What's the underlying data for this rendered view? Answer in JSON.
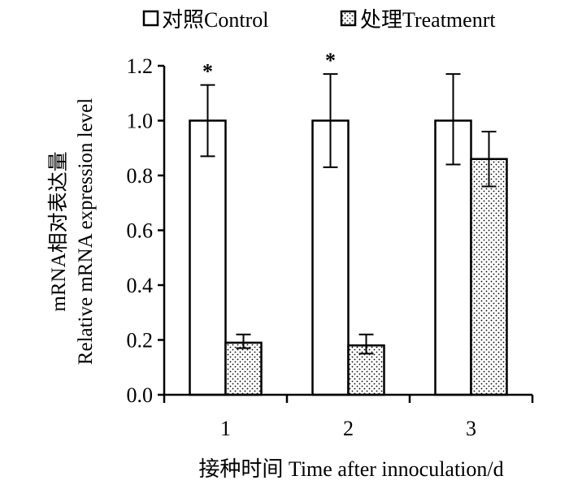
{
  "chart_data": {
    "type": "bar",
    "categories": [
      "1",
      "2",
      "3"
    ],
    "series": [
      {
        "name": "对照Control",
        "values": [
          1.0,
          1.0,
          1.0
        ],
        "err_low": [
          0.87,
          0.83,
          0.84
        ],
        "err_high": [
          1.13,
          1.17,
          1.17
        ],
        "color": "#ffffff",
        "pattern": "none"
      },
      {
        "name": "处理Treatmenrt",
        "values": [
          0.19,
          0.18,
          0.86
        ],
        "err_low": [
          0.17,
          0.15,
          0.76
        ],
        "err_high": [
          0.22,
          0.22,
          0.96
        ],
        "color": "#ffffff",
        "pattern": "dots"
      }
    ],
    "significance": [
      "*",
      "*",
      ""
    ],
    "xlabel": "接种时间 Time after innoculation/d",
    "ylabel_line1": "mRNA相对表达量",
    "ylabel_line2": "Relative mRNA expression level",
    "ylim": [
      0,
      1.2
    ],
    "yticks": [
      "0.0",
      "0.2",
      "0.4",
      "0.6",
      "0.8",
      "1.0",
      "1.2"
    ],
    "legend_position": "top"
  }
}
